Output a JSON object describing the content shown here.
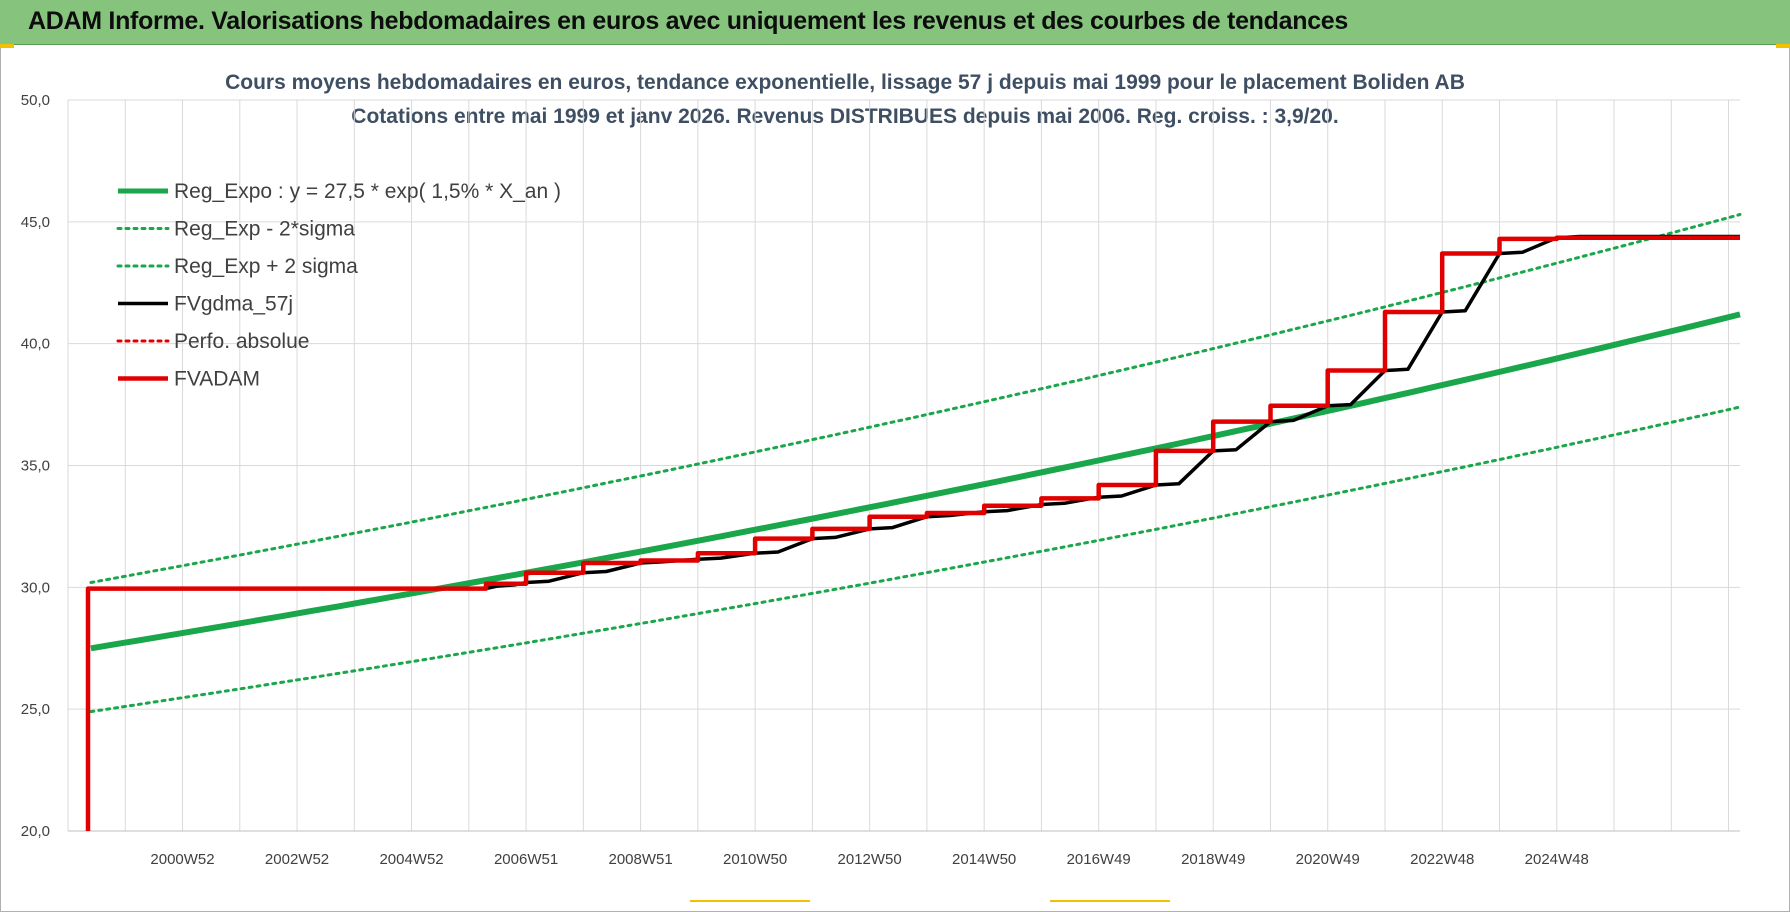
{
  "banner": {
    "title": "ADAM Informe. Valorisations hebdomadaires en euros avec uniquement les revenus et des courbes de tendances"
  },
  "chart_data": {
    "type": "line",
    "title": "Cours moyens hebdomadaires en euros, tendance exponentielle, lissage 57 j depuis mai 1999 pour le placement Boliden AB",
    "subtitle": "Cotations entre mai 1999 et janv 2026. Revenus DISTRIBUES depuis mai 2006. Reg. croiss. : 3,9/20.",
    "xlabel": "",
    "ylabel": "",
    "xlim": [
      1998.0,
      2027.2
    ],
    "ylim": [
      20,
      50
    ],
    "y_ticks": [
      "20,0",
      "25,0",
      "30,0",
      "35,0",
      "40,0",
      "45,0",
      "50,0"
    ],
    "x_ticks": [
      {
        "label": "2000W52",
        "x": 2000.0
      },
      {
        "label": "2002W52",
        "x": 2002.0
      },
      {
        "label": "2004W52",
        "x": 2004.0
      },
      {
        "label": "2006W51",
        "x": 2006.0
      },
      {
        "label": "2008W51",
        "x": 2008.0
      },
      {
        "label": "2010W50",
        "x": 2010.0
      },
      {
        "label": "2012W50",
        "x": 2012.0
      },
      {
        "label": "2014W50",
        "x": 2014.0
      },
      {
        "label": "2016W49",
        "x": 2016.0
      },
      {
        "label": "2018W49",
        "x": 2018.0
      },
      {
        "label": "2020W49",
        "x": 2020.0
      },
      {
        "label": "2022W48",
        "x": 2022.0
      },
      {
        "label": "2024W48",
        "x": 2024.0
      }
    ],
    "grid": true,
    "legend_position": "top-left",
    "series": [
      {
        "name": "Reg_Expo : y = 27,5 * exp( 1,5% *  X_an )",
        "color": "#1aa64a",
        "style": "solid-thick",
        "x": [
          1998.4,
          2027.2
        ],
        "y": [
          27.5,
          41.2
        ]
      },
      {
        "name": "Reg_Exp - 2*sigma",
        "color": "#1aa64a",
        "style": "dotted",
        "x": [
          1998.4,
          2027.2
        ],
        "y": [
          24.9,
          37.4
        ]
      },
      {
        "name": "Reg_Exp + 2 sigma",
        "color": "#1aa64a",
        "style": "dotted",
        "x": [
          1998.4,
          2027.2
        ],
        "y": [
          30.2,
          45.3
        ]
      },
      {
        "name": "FVgdma_57j",
        "color": "#000000",
        "style": "solid",
        "x": [
          1998.35,
          1998.35,
          2005.3,
          2005.5,
          2005.8,
          2006.0,
          2006.4,
          2007.0,
          2007.4,
          2008.0,
          2008.4,
          2009.0,
          2009.4,
          2010.0,
          2010.4,
          2011.0,
          2011.4,
          2012.0,
          2012.4,
          2013.0,
          2013.4,
          2014.0,
          2014.4,
          2015.0,
          2015.4,
          2016.0,
          2016.4,
          2017.0,
          2017.4,
          2018.0,
          2018.4,
          2019.0,
          2019.4,
          2020.0,
          2020.4,
          2021.0,
          2021.4,
          2022.0,
          2022.4,
          2023.0,
          2023.4,
          2024.0,
          2024.4,
          2027.2
        ],
        "y": [
          20.0,
          29.95,
          29.95,
          30.05,
          30.1,
          30.2,
          30.25,
          30.6,
          30.65,
          31.0,
          31.05,
          31.15,
          31.2,
          31.4,
          31.45,
          32.0,
          32.05,
          32.4,
          32.45,
          32.9,
          32.95,
          33.1,
          33.15,
          33.4,
          33.45,
          33.7,
          33.75,
          34.2,
          34.25,
          35.6,
          35.65,
          36.8,
          36.85,
          37.45,
          37.5,
          38.9,
          38.95,
          41.3,
          41.35,
          43.7,
          43.75,
          44.35,
          44.4,
          44.4
        ]
      },
      {
        "name": "Perfo. absolue",
        "color": "#e00000",
        "style": "dotted",
        "x": [],
        "y": []
      },
      {
        "name": "FVADAM",
        "color": "#e00000",
        "style": "step-thick",
        "x": [
          1998.35,
          1998.35,
          2005.3,
          2006.0,
          2007.0,
          2008.0,
          2009.0,
          2010.0,
          2011.0,
          2012.0,
          2013.0,
          2014.0,
          2015.0,
          2016.0,
          2017.0,
          2018.0,
          2019.0,
          2020.0,
          2021.0,
          2022.0,
          2023.0,
          2024.0,
          2027.2
        ],
        "y": [
          20.0,
          29.95,
          30.15,
          30.6,
          31.0,
          31.1,
          31.4,
          32.0,
          32.4,
          32.9,
          33.05,
          33.35,
          33.65,
          34.2,
          35.6,
          36.8,
          37.45,
          38.9,
          41.3,
          43.7,
          44.3,
          44.35,
          44.35
        ]
      }
    ]
  }
}
